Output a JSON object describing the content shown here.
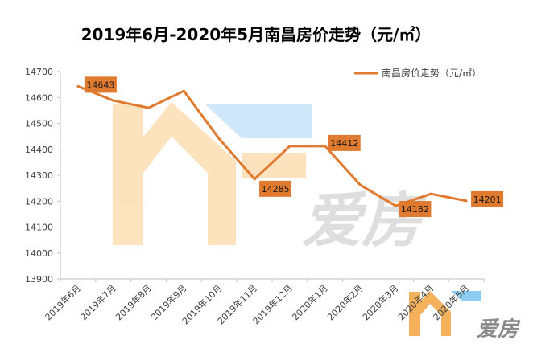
{
  "chart_data": {
    "type": "line",
    "title": "2019年6月-2020年5月南昌房价走势（元/㎡）",
    "categories": [
      "2019年6月",
      "2019年7月",
      "2019年8月",
      "2019年9月",
      "2019年10月",
      "2019年11月",
      "2019年12月",
      "2020年1月",
      "2020年2月",
      "2020年3月",
      "2020年4月",
      "2020年5月"
    ],
    "series": [
      {
        "name": "南昌房价走势（元/㎡）",
        "values": [
          14643,
          14588,
          14560,
          14625,
          14440,
          14285,
          14412,
          14412,
          14262,
          14182,
          14228,
          14201
        ]
      }
    ],
    "data_labels": [
      {
        "index": 0,
        "text": "14643"
      },
      {
        "index": 5,
        "text": "14285"
      },
      {
        "index": 7,
        "text": "14412"
      },
      {
        "index": 9,
        "text": "14182"
      },
      {
        "index": 11,
        "text": "14201"
      }
    ],
    "y_ticks": [
      "13900",
      "14000",
      "14100",
      "14200",
      "14300",
      "14400",
      "14500",
      "14600",
      "14700"
    ],
    "ylim": [
      13900,
      14700
    ],
    "legend_position": "top-right",
    "grid": false,
    "colors": {
      "line": "#E07A2E",
      "label_bg": "#E07A2E",
      "axis": "#bfbfbf",
      "text": "#404040"
    }
  },
  "watermark": {
    "brand_text": "爱房",
    "icon": "aifang-logo"
  }
}
